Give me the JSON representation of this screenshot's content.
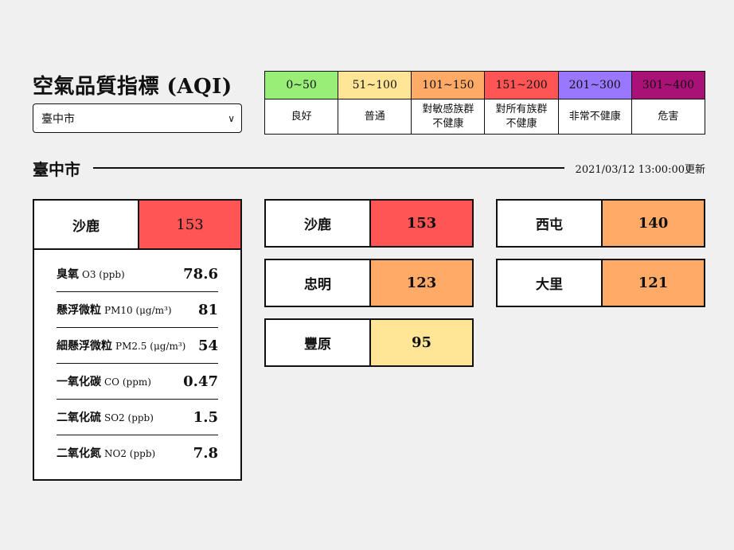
{
  "title": "空氣品質指標 (AQI)",
  "select": {
    "value": "臺中市"
  },
  "legend": [
    {
      "range": "0~50",
      "desc": [
        "良好"
      ],
      "color": "#99ee77"
    },
    {
      "range": "51~100",
      "desc": [
        "普通"
      ],
      "color": "#ffe595"
    },
    {
      "range": "101~150",
      "desc": [
        "對敏感族群",
        "不健康"
      ],
      "color": "#ffaa66"
    },
    {
      "range": "151~200",
      "desc": [
        "對所有族群",
        "不健康"
      ],
      "color": "#ff5555"
    },
    {
      "range": "201~300",
      "desc": [
        "非常不健康"
      ],
      "color": "#9977ff"
    },
    {
      "range": "301~400",
      "desc": [
        "危害"
      ],
      "color": "#aa1177"
    }
  ],
  "section": {
    "name": "臺中市",
    "updated": "2021/03/12 13:00:00更新"
  },
  "detail": {
    "site": "沙鹿",
    "aqi": "153",
    "color": "#ff5555",
    "pollutants": [
      {
        "name": "臭氧",
        "unit": "O3 (ppb)",
        "value": "78.6"
      },
      {
        "name": "懸浮微粒",
        "unit": "PM10 (μg/m³)",
        "value": "81"
      },
      {
        "name": "細懸浮微粒",
        "unit": "PM2.5 (μg/m³)",
        "value": "54"
      },
      {
        "name": "一氧化碳",
        "unit": "CO (ppm)",
        "value": "0.47"
      },
      {
        "name": "二氧化硫",
        "unit": "SO2 (ppb)",
        "value": "1.5"
      },
      {
        "name": "二氧化氮",
        "unit": "NO2 (ppb)",
        "value": "7.8"
      }
    ]
  },
  "stations": [
    {
      "site": "沙鹿",
      "aqi": "153",
      "color": "#ff5555"
    },
    {
      "site": "西屯",
      "aqi": "140",
      "color": "#ffaa66"
    },
    {
      "site": "忠明",
      "aqi": "123",
      "color": "#ffaa66"
    },
    {
      "site": "大里",
      "aqi": "121",
      "color": "#ffaa66"
    },
    {
      "site": "豐原",
      "aqi": "95",
      "color": "#ffe595"
    }
  ]
}
